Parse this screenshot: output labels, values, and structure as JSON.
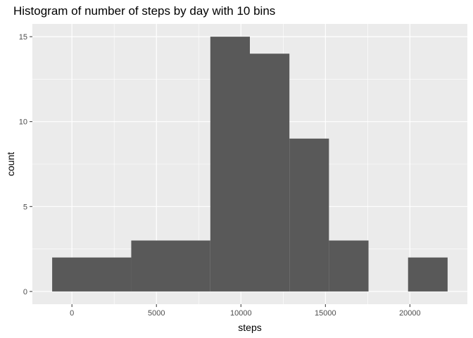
{
  "chart_data": {
    "type": "bar",
    "title": "Histogram of number of steps by day with 10 bins",
    "xlabel": "steps",
    "ylabel": "count",
    "bins": [
      {
        "x_start": -1170,
        "x_end": 3510,
        "count": 2
      },
      {
        "x_start": 3510,
        "x_end": 8190,
        "count": 3
      },
      {
        "x_start": 8190,
        "x_end": 10530,
        "count": 15
      },
      {
        "x_start": 10530,
        "x_end": 12870,
        "count": 14
      },
      {
        "x_start": 12870,
        "x_end": 15210,
        "count": 9
      },
      {
        "x_start": 15210,
        "x_end": 17550,
        "count": 3
      },
      {
        "x_start": 19890,
        "x_end": 22230,
        "count": 2
      }
    ],
    "x_ticks": [
      0,
      5000,
      10000,
      15000,
      20000
    ],
    "y_ticks": [
      0,
      5,
      10,
      15
    ],
    "xlim": [
      -2340,
      23400
    ],
    "ylim": [
      -0.75,
      15.75
    ],
    "grid": true,
    "panel_background": "#ebebeb",
    "bar_color": "#595959",
    "grid_color": "#ffffff",
    "legend": "none"
  }
}
